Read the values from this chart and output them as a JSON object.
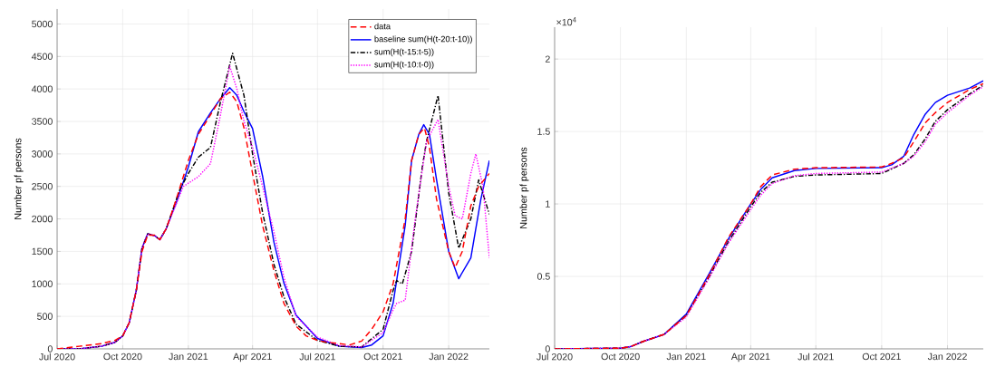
{
  "chart_data": [
    {
      "type": "line",
      "ylabel": "Number pf persons",
      "xlim": [
        "2020-07-01",
        "2022-02-27"
      ],
      "ylim": [
        0,
        5230
      ],
      "xticks": [
        {
          "value": "2020-07-01",
          "label": "Jul 2020"
        },
        {
          "value": "2020-10-01",
          "label": "Oct 2020"
        },
        {
          "value": "2021-01-01",
          "label": "Jan 2021"
        },
        {
          "value": "2021-04-01",
          "label": "Apr 2021"
        },
        {
          "value": "2021-07-01",
          "label": "Jul 2021"
        },
        {
          "value": "2021-10-01",
          "label": "Oct 2021"
        },
        {
          "value": "2022-01-01",
          "label": "Jan 2022"
        }
      ],
      "yticks": [
        0,
        500,
        1000,
        1500,
        2000,
        2500,
        3000,
        3500,
        4000,
        4500,
        5000
      ],
      "grid": true,
      "legend": "top right",
      "marker": "none",
      "series": [
        {
          "name": "data",
          "color": "#ff0000",
          "line_style": "dashed",
          "x": [
            "2020-07-01",
            "2020-08-01",
            "2020-09-01",
            "2020-09-20",
            "2020-10-01",
            "2020-10-10",
            "2020-10-20",
            "2020-10-28",
            "2020-11-05",
            "2020-11-15",
            "2020-11-22",
            "2020-12-01",
            "2020-12-15",
            "2021-01-01",
            "2021-01-15",
            "2021-02-01",
            "2021-02-15",
            "2021-02-28",
            "2021-03-10",
            "2021-03-20",
            "2021-04-01",
            "2021-04-15",
            "2021-05-01",
            "2021-05-15",
            "2021-06-01",
            "2021-06-15",
            "2021-07-01",
            "2021-07-15",
            "2021-08-01",
            "2021-08-15",
            "2021-09-01",
            "2021-09-15",
            "2021-10-01",
            "2021-10-15",
            "2021-11-01",
            "2021-11-10",
            "2021-11-20",
            "2021-11-28",
            "2021-12-05",
            "2021-12-15",
            "2022-01-01",
            "2022-01-10",
            "2022-01-20",
            "2022-02-01",
            "2022-02-12",
            "2022-02-27"
          ],
          "values": [
            0,
            40,
            80,
            130,
            200,
            400,
            900,
            1500,
            1750,
            1750,
            1680,
            1850,
            2300,
            2900,
            3300,
            3600,
            3850,
            3950,
            3800,
            3400,
            2700,
            1900,
            1200,
            700,
            350,
            200,
            130,
            100,
            80,
            60,
            120,
            300,
            570,
            1000,
            2000,
            2900,
            3300,
            3400,
            3100,
            2300,
            1500,
            1250,
            1500,
            2200,
            2500,
            2700
          ]
        },
        {
          "name": "baseline sum(H(t-20:t-10))",
          "color": "#0000ff",
          "line_style": "solid",
          "x": [
            "2020-07-01",
            "2020-08-01",
            "2020-09-01",
            "2020-09-20",
            "2020-10-01",
            "2020-10-10",
            "2020-10-20",
            "2020-10-28",
            "2020-11-05",
            "2020-11-15",
            "2020-11-22",
            "2020-12-01",
            "2020-12-15",
            "2021-01-01",
            "2021-01-15",
            "2021-02-01",
            "2021-02-15",
            "2021-02-28",
            "2021-03-10",
            "2021-03-20",
            "2021-04-01",
            "2021-04-15",
            "2021-05-01",
            "2021-05-15",
            "2021-06-01",
            "2021-07-01",
            "2021-08-01",
            "2021-09-01",
            "2021-09-15",
            "2021-10-01",
            "2021-10-15",
            "2021-11-01",
            "2021-11-10",
            "2021-11-20",
            "2021-11-27",
            "2021-12-05",
            "2021-12-15",
            "2022-01-01",
            "2022-01-15",
            "2022-02-01",
            "2022-02-15",
            "2022-02-27"
          ],
          "values": [
            0,
            0,
            40,
            100,
            200,
            400,
            900,
            1550,
            1770,
            1740,
            1680,
            1850,
            2250,
            2800,
            3340,
            3630,
            3850,
            4020,
            3900,
            3650,
            3390,
            2660,
            1640,
            1010,
            520,
            160,
            40,
            20,
            60,
            200,
            700,
            1900,
            2900,
            3300,
            3450,
            3300,
            2600,
            1500,
            1080,
            1400,
            2300,
            2900
          ]
        },
        {
          "name": "sum(H(t-15:t-5))",
          "color": "#000000",
          "line_style": "dashdot",
          "x": [
            "2020-07-01",
            "2020-08-01",
            "2020-09-01",
            "2020-09-20",
            "2020-10-01",
            "2020-10-10",
            "2020-10-20",
            "2020-10-28",
            "2020-11-05",
            "2020-11-15",
            "2020-11-22",
            "2020-12-01",
            "2020-12-20",
            "2021-01-01",
            "2021-01-15",
            "2021-02-01",
            "2021-02-15",
            "2021-03-04",
            "2021-03-20",
            "2021-04-01",
            "2021-04-15",
            "2021-05-01",
            "2021-05-15",
            "2021-06-01",
            "2021-07-01",
            "2021-08-01",
            "2021-09-01",
            "2021-10-01",
            "2021-10-15",
            "2021-10-20",
            "2021-10-28",
            "2021-11-10",
            "2021-11-25",
            "2021-12-01",
            "2021-12-17",
            "2022-01-01",
            "2022-01-15",
            "2022-02-01",
            "2022-02-12",
            "2022-02-27"
          ],
          "values": [
            0,
            0,
            40,
            100,
            200,
            400,
            900,
            1550,
            1770,
            1740,
            1680,
            1850,
            2450,
            2700,
            2950,
            3100,
            3800,
            4550,
            3900,
            3000,
            2100,
            1300,
            800,
            380,
            130,
            40,
            30,
            300,
            900,
            1050,
            1000,
            1500,
            2800,
            3200,
            3900,
            2400,
            1550,
            2000,
            2600,
            2070
          ]
        },
        {
          "name": "sum(H(t-10:t-0))",
          "color": "#ff00ff",
          "line_style": "dotted",
          "x": [
            "2020-07-01",
            "2020-08-01",
            "2020-09-01",
            "2020-09-20",
            "2020-10-01",
            "2020-10-10",
            "2020-10-20",
            "2020-10-28",
            "2020-11-05",
            "2020-11-15",
            "2020-11-22",
            "2020-12-01",
            "2020-12-25",
            "2021-01-15",
            "2021-02-01",
            "2021-02-15",
            "2021-02-28",
            "2021-03-10",
            "2021-03-20",
            "2021-04-01",
            "2021-04-15",
            "2021-05-01",
            "2021-05-15",
            "2021-06-01",
            "2021-07-01",
            "2021-08-01",
            "2021-09-01",
            "2021-10-01",
            "2021-10-15",
            "2021-10-20",
            "2021-11-01",
            "2021-11-15",
            "2021-12-01",
            "2021-12-17",
            "2022-01-01",
            "2022-01-10",
            "2022-01-20",
            "2022-02-01",
            "2022-02-08",
            "2022-02-18",
            "2022-02-27"
          ],
          "values": [
            0,
            0,
            40,
            100,
            200,
            400,
            900,
            1550,
            1770,
            1740,
            1680,
            1850,
            2500,
            2650,
            2850,
            3600,
            4350,
            4000,
            3500,
            3100,
            2500,
            1800,
            1100,
            500,
            180,
            50,
            30,
            250,
            600,
            700,
            750,
            2000,
            3200,
            3530,
            2500,
            2050,
            2000,
            2700,
            3000,
            2500,
            1400
          ]
        }
      ]
    },
    {
      "type": "line",
      "ylabel": "Number pf persons",
      "annotations": [
        "×10$^{4}$"
      ],
      "xlim": [
        "2020-07-01",
        "2022-02-20"
      ],
      "ylim": [
        0,
        2.22
      ],
      "xticks": [
        {
          "value": "2020-07-01",
          "label": "Jul 2020"
        },
        {
          "value": "2020-10-01",
          "label": "Oct 2020"
        },
        {
          "value": "2021-01-01",
          "label": "Jan 2021"
        },
        {
          "value": "2021-04-01",
          "label": "Apr 2021"
        },
        {
          "value": "2021-07-01",
          "label": "Jul 2021"
        },
        {
          "value": "2021-10-01",
          "label": "Oct 2021"
        },
        {
          "value": "2022-01-01",
          "label": "Jan 2022"
        }
      ],
      "yticks": [
        0,
        0.5,
        1,
        1.5,
        2
      ],
      "grid": true,
      "marker": "none",
      "series": [
        {
          "color": "#ff0000",
          "line_style": "dashed",
          "x": [
            "2020-07-01",
            "2020-10-01",
            "2020-10-15",
            "2020-11-01",
            "2020-12-01",
            "2021-01-01",
            "2021-02-01",
            "2021-03-01",
            "2021-04-01",
            "2021-04-15",
            "2021-05-01",
            "2021-06-01",
            "2021-07-01",
            "2021-10-01",
            "2021-10-15",
            "2021-11-01",
            "2021-11-15",
            "2021-12-01",
            "2021-12-15",
            "2022-01-01",
            "2022-02-01",
            "2022-02-20"
          ],
          "values": [
            0,
            0.005,
            0.015,
            0.05,
            0.1,
            0.23,
            0.5,
            0.77,
            1.0,
            1.12,
            1.2,
            1.24,
            1.25,
            1.255,
            1.28,
            1.32,
            1.43,
            1.56,
            1.63,
            1.7,
            1.79,
            1.83
          ]
        },
        {
          "color": "#0000ff",
          "line_style": "solid",
          "x": [
            "2020-07-01",
            "2020-10-01",
            "2020-10-15",
            "2020-11-01",
            "2020-12-01",
            "2021-01-01",
            "2021-02-01",
            "2021-03-01",
            "2021-04-01",
            "2021-04-15",
            "2021-05-01",
            "2021-06-01",
            "2021-07-01",
            "2021-10-01",
            "2021-10-15",
            "2021-11-01",
            "2021-11-15",
            "2021-12-01",
            "2021-12-15",
            "2022-01-01",
            "2022-02-01",
            "2022-02-20"
          ],
          "values": [
            0,
            0.005,
            0.015,
            0.05,
            0.1,
            0.24,
            0.51,
            0.76,
            1.0,
            1.1,
            1.18,
            1.23,
            1.245,
            1.25,
            1.27,
            1.33,
            1.48,
            1.62,
            1.7,
            1.75,
            1.8,
            1.85
          ]
        },
        {
          "color": "#000000",
          "line_style": "dashdot",
          "x": [
            "2020-07-01",
            "2020-10-01",
            "2020-10-15",
            "2020-11-01",
            "2020-12-01",
            "2021-01-01",
            "2021-02-01",
            "2021-03-01",
            "2021-04-01",
            "2021-04-15",
            "2021-05-01",
            "2021-06-01",
            "2021-07-01",
            "2021-10-01",
            "2021-11-01",
            "2021-11-15",
            "2021-12-01",
            "2021-12-15",
            "2022-01-01",
            "2022-02-01",
            "2022-02-20"
          ],
          "values": [
            0,
            0.005,
            0.015,
            0.05,
            0.1,
            0.23,
            0.49,
            0.74,
            0.98,
            1.08,
            1.15,
            1.19,
            1.2,
            1.21,
            1.28,
            1.34,
            1.45,
            1.57,
            1.65,
            1.76,
            1.82
          ]
        },
        {
          "color": "#ff00ff",
          "line_style": "dotted",
          "x": [
            "2020-07-01",
            "2020-10-01",
            "2020-10-15",
            "2020-11-01",
            "2020-12-01",
            "2021-01-01",
            "2021-02-01",
            "2021-03-01",
            "2021-04-01",
            "2021-04-15",
            "2021-05-01",
            "2021-06-01",
            "2021-07-01",
            "2021-10-01",
            "2021-11-01",
            "2021-11-15",
            "2021-12-01",
            "2021-12-15",
            "2022-01-01",
            "2022-02-01",
            "2022-02-20"
          ],
          "values": [
            0,
            0.005,
            0.015,
            0.05,
            0.1,
            0.22,
            0.48,
            0.73,
            0.96,
            1.06,
            1.14,
            1.195,
            1.21,
            1.22,
            1.28,
            1.33,
            1.43,
            1.55,
            1.63,
            1.75,
            1.81
          ]
        }
      ]
    }
  ]
}
